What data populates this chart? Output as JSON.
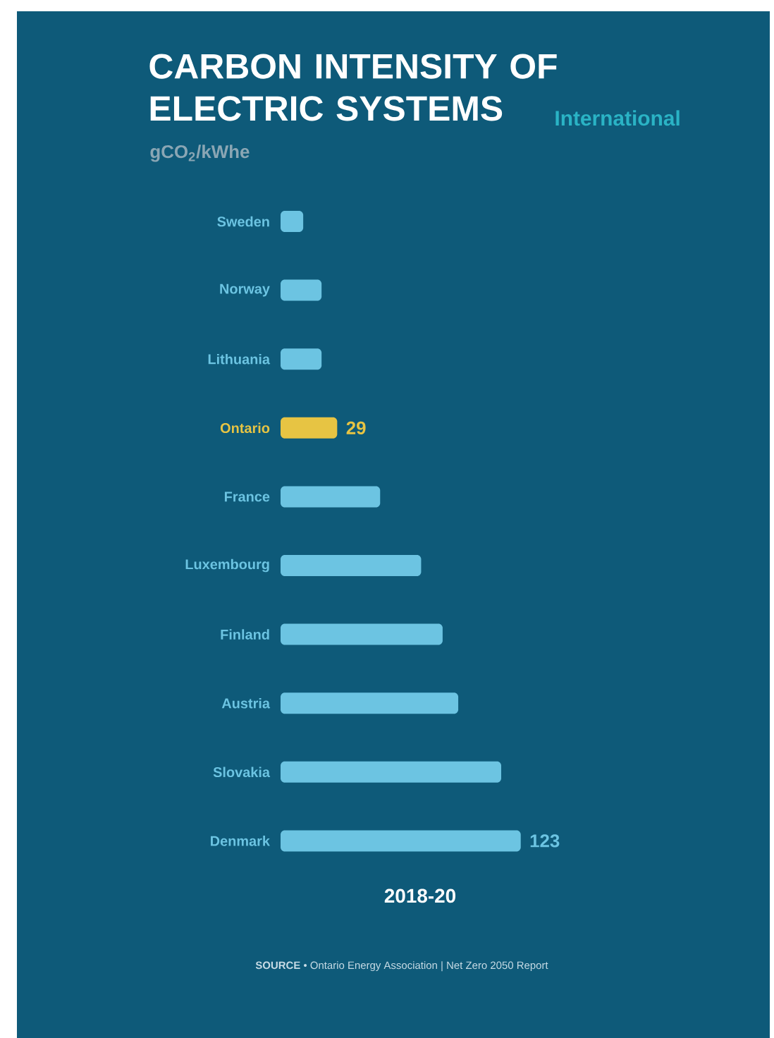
{
  "chart_data": {
    "type": "bar",
    "orientation": "horizontal",
    "title": "CARBON INTENSITY OF ELECTRIC SYSTEMS",
    "subtitle": "International",
    "categories": [
      "Sweden",
      "Norway",
      "Lithuania",
      "Ontario",
      "France",
      "Luxembourg",
      "Finland",
      "Austria",
      "Slovakia",
      "Denmark"
    ],
    "values": [
      11.6,
      21,
      21,
      29,
      51,
      72,
      83,
      91,
      113,
      123
    ],
    "colors": [
      "#6cc4e2",
      "#6cc4e2",
      "#6cc4e2",
      "#e7c443",
      "#6cc4e2",
      "#6cc4e2",
      "#6cc4e2",
      "#6cc4e2",
      "#6cc4e2",
      "#6cc4e2"
    ],
    "value_labels": [
      null,
      null,
      null,
      "29",
      null,
      null,
      null,
      null,
      null,
      "123"
    ],
    "tick_labels": "y",
    "annotations": [
      "gCO$_{2}$/kWhe",
      "2018-20",
      "**SOURCE**   •  Ontario Energy Association   |   Net Zero 2050 Report"
    ]
  }
}
